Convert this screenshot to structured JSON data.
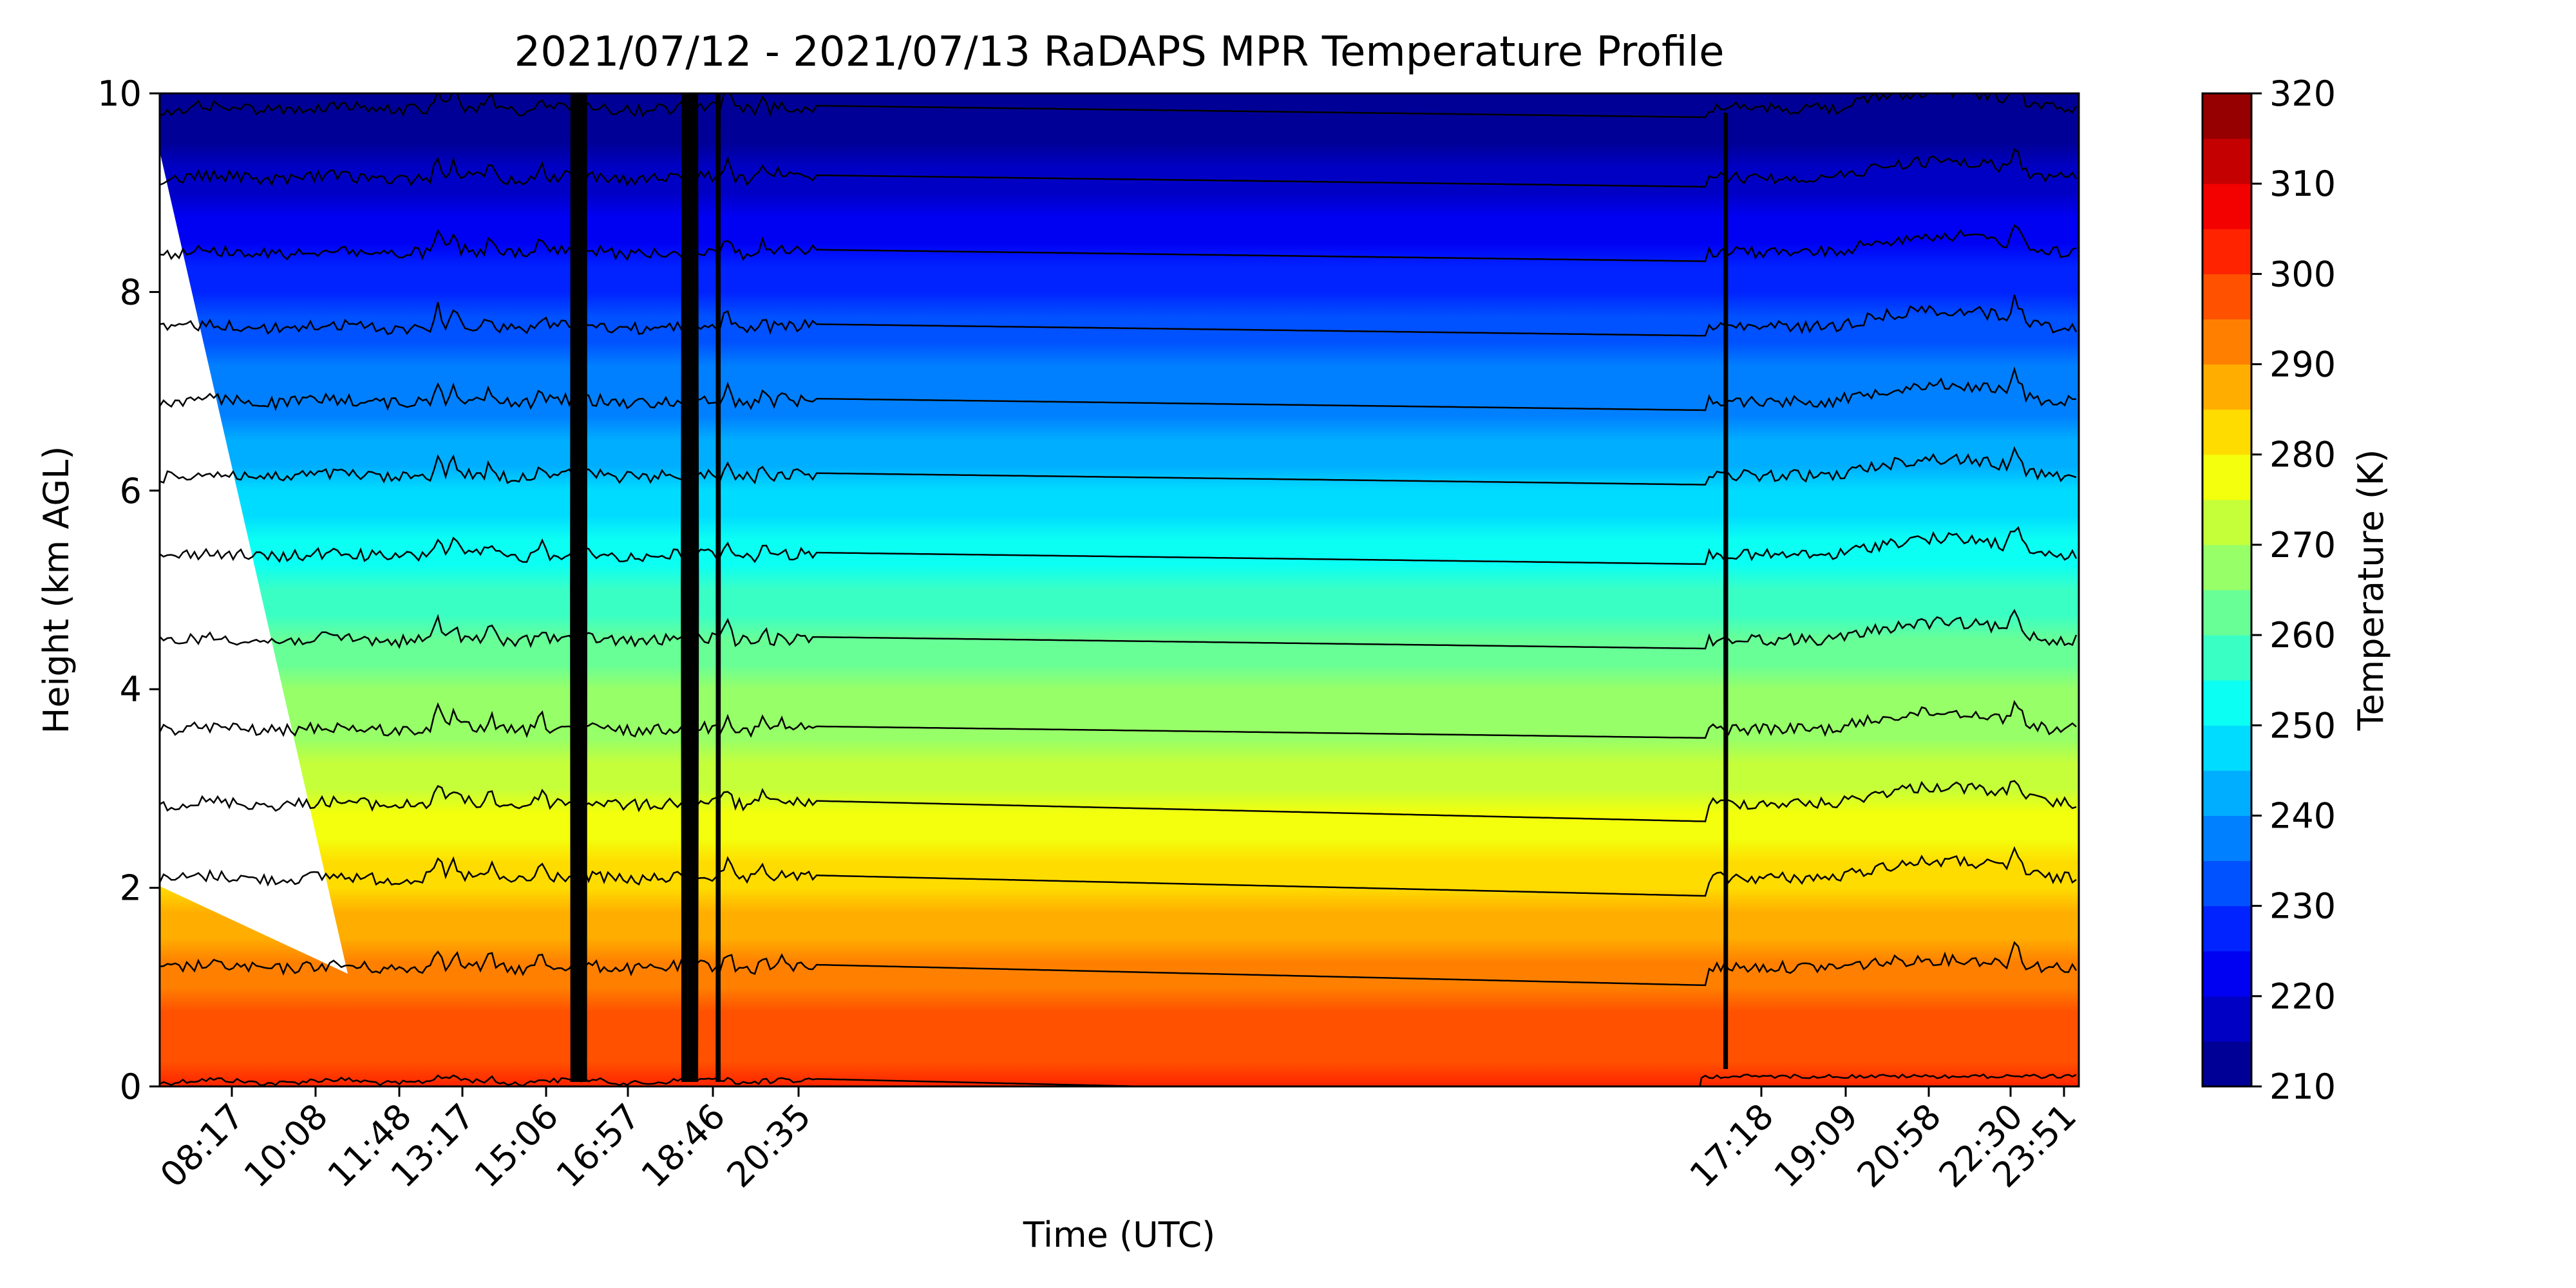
{
  "chart_data": {
    "type": "heatmap",
    "title": "2021/07/12 - 2021/07/13 RaDAPS MPR Temperature Profile",
    "xlabel": "Time (UTC)",
    "ylabel": "Height (km AGL)",
    "ylim": [
      0,
      10
    ],
    "yticks": [
      "0",
      "2",
      "4",
      "6",
      "8",
      "10"
    ],
    "xticks": [
      "08:17",
      "10:08",
      "11:48",
      "13:17",
      "15:06",
      "16:57",
      "18:46",
      "20:35",
      "17:18",
      "19:09",
      "20:58",
      "22:30",
      "23:51"
    ],
    "colorbar": {
      "label": "Temperature (K)",
      "min": 210,
      "max": 320,
      "step": 5,
      "ticks": [
        "210",
        "220",
        "230",
        "240",
        "250",
        "260",
        "270",
        "280",
        "290",
        "300",
        "310",
        "320"
      ],
      "colormap": "jet"
    },
    "isotherm_heights_km": [
      0.05,
      1.2,
      2.1,
      2.85,
      3.6,
      4.5,
      5.35,
      6.15,
      6.9,
      7.65,
      8.4,
      9.15,
      9.85
    ],
    "surface_temperature_K": 302,
    "lapse_rate_K_per_km": 9.2,
    "grid": false
  }
}
